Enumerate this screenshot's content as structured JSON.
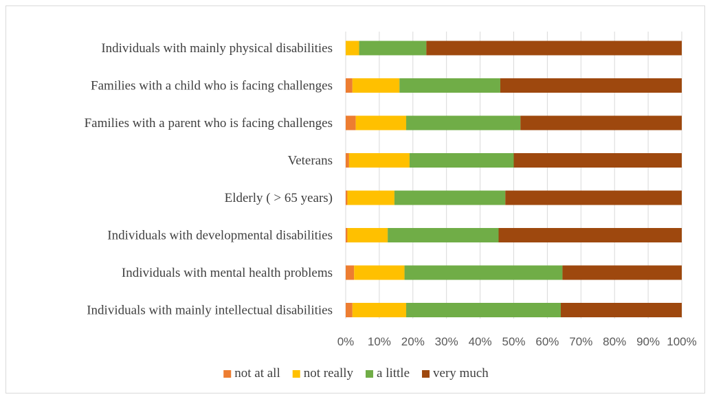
{
  "chart_data": {
    "type": "bar",
    "orientation": "horizontal",
    "stacked": "percent",
    "title": "",
    "xlabel": "",
    "ylabel": "",
    "xlim": [
      0,
      100
    ],
    "grid": true,
    "legend_position": "bottom",
    "categories": [
      "Individuals with mainly physical disabilities",
      "Families with a child who is facing challenges",
      "Families with a parent who is facing challenges",
      "Veterans",
      "Elderly ( > 65 years)",
      "Individuals with developmental disabilities",
      "Individuals with mental health problems",
      "Individuals with mainly intellectual disabilities"
    ],
    "x_ticks": [
      "0%",
      "10%",
      "20%",
      "30%",
      "40%",
      "50%",
      "60%",
      "70%",
      "80%",
      "90%",
      "100%"
    ],
    "series": [
      {
        "name": "not at all",
        "color": "#ed7d31",
        "values": [
          0,
          2,
          3,
          1,
          0.5,
          0.5,
          2.5,
          2
        ]
      },
      {
        "name": "not really",
        "color": "#ffc000",
        "values": [
          4,
          14,
          15,
          18,
          14,
          12,
          15,
          16
        ]
      },
      {
        "name": "a little",
        "color": "#70ad47",
        "values": [
          20,
          30,
          34,
          31,
          33,
          33,
          47,
          46
        ]
      },
      {
        "name": "very much",
        "color": "#9e480e",
        "values": [
          76,
          54,
          48,
          50,
          52.5,
          54.5,
          35.5,
          36
        ]
      }
    ]
  }
}
